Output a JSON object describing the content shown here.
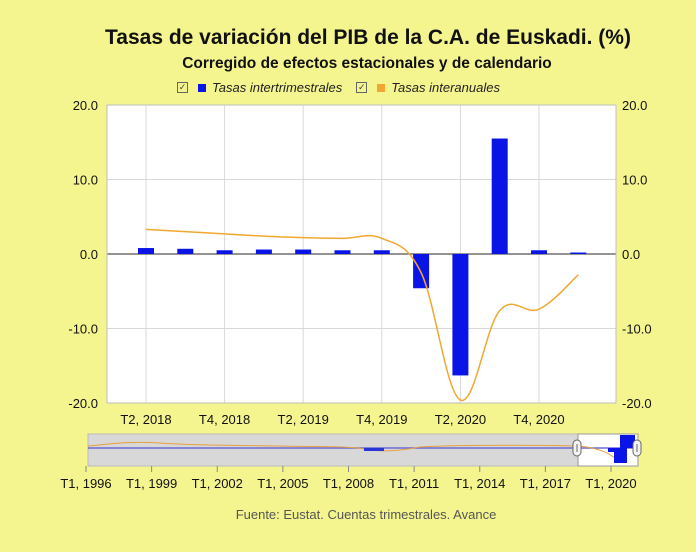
{
  "title": "Tasas de variación del PIB de la C.A. de Euskadi. (%)",
  "subtitle": "Corregido de efectos estacionales y de calendario",
  "legend": {
    "check_glyph": "✓",
    "items": [
      {
        "label": "Tasas intertrimestrales",
        "color": "#0a14e6"
      },
      {
        "label": "Tasas interanuales",
        "color": "#f0a830"
      }
    ]
  },
  "source": "Fuente: Eustat. Cuentas trimestrales. Avance",
  "chart_data": {
    "type": "bar",
    "ylim": [
      -20,
      20
    ],
    "y_ticks": [
      "20.0",
      "10.0",
      "0.0",
      "-10.0",
      "-20.0"
    ],
    "y_tick_values": [
      20,
      10,
      0,
      -10,
      -20
    ],
    "x_tick_labels": [
      "T2, 2018",
      "T4, 2018",
      "T2, 2019",
      "T4, 2019",
      "T2, 2020",
      "T4, 2020"
    ],
    "categories": [
      "T2, 2018",
      "T3, 2018",
      "T4, 2018",
      "T1, 2019",
      "T2, 2019",
      "T3, 2019",
      "T4, 2019",
      "T1, 2020",
      "T2, 2020",
      "T3, 2020",
      "T4, 2020",
      "T1, 2021"
    ],
    "series": [
      {
        "name": "Tasas intertrimestrales",
        "type": "bar",
        "color": "#0a14e6",
        "values": [
          0.8,
          0.7,
          0.5,
          0.6,
          0.6,
          0.5,
          0.5,
          -4.6,
          -16.3,
          15.5,
          0.5,
          0.2
        ]
      },
      {
        "name": "Tasas interanuales",
        "type": "line",
        "color": "#f0a830",
        "values": [
          3.3,
          3.0,
          2.7,
          2.4,
          2.2,
          2.1,
          2.1,
          -2.5,
          -19.6,
          -7.6,
          -7.4,
          -2.8
        ]
      }
    ],
    "navigator": {
      "x_tick_labels": [
        "T1, 1996",
        "T1, 1999",
        "T1, 2002",
        "T1, 2005",
        "T1, 2008",
        "T1, 2011",
        "T1, 2014",
        "T1, 2017",
        "T1, 2020"
      ]
    }
  }
}
